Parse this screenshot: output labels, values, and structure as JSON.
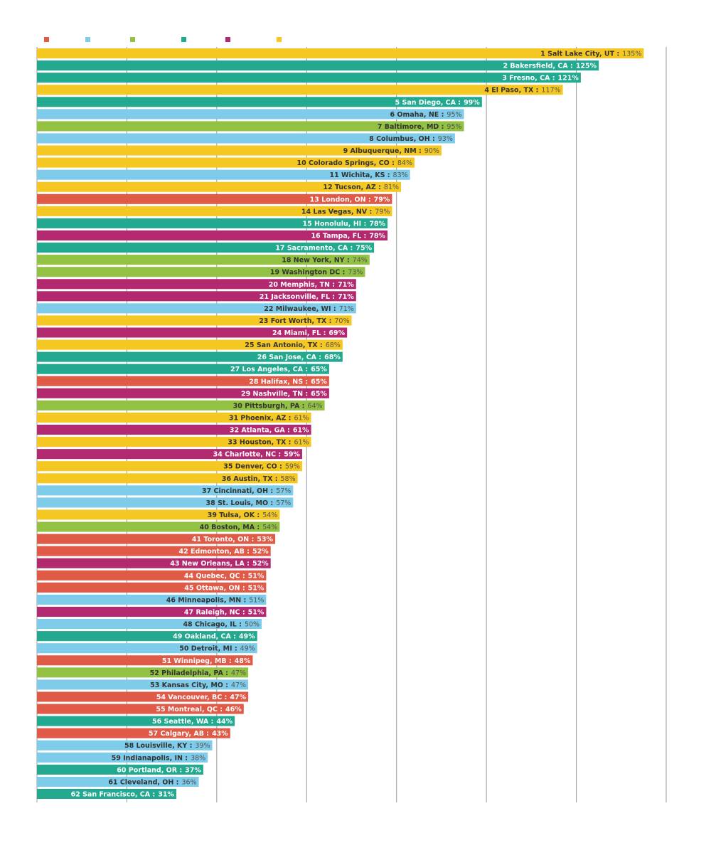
{
  "chart_data": {
    "type": "hbar",
    "legend_colors": [
      "#e05a48",
      "#7ecbea",
      "#92c143",
      "#22a98f",
      "#b3296f",
      "#f5c723"
    ],
    "categories": [
      "1 Salt Lake City, UT :",
      "2 Bakersfield, CA :",
      "3 Fresno, CA :",
      "4 El Paso, TX :",
      "5 San Diego, CA :",
      "6 Omaha, NE :",
      "7 Baltimore, MD :",
      "8 Columbus, OH :",
      "9 Albuquerque, NM :",
      "10 Colorado Springs, CO :",
      "11 Wichita, KS :",
      "12 Tucson, AZ :",
      "13 London, ON :",
      "14 Las Vegas, NV :",
      "15 Honolulu, HI :",
      "16 Tampa, FL :",
      "17 Sacramento, CA :",
      "18 New York, NY :",
      "19 Washington DC :",
      "20 Memphis, TN :",
      "21 Jacksonville, FL :",
      "22 Milwaukee, WI :",
      "23 Fort Worth, TX :",
      "24 Miami, FL :",
      "25 San Antonio, TX :",
      "26 San Jose, CA :",
      "27 Los Angeles, CA :",
      "28 Halifax, NS :",
      "29 Nashville, TN :",
      "30 Pittsburgh, PA :",
      "31 Phoenix, AZ :",
      "32 Atlanta, GA :",
      "33 Houston, TX :",
      "34 Charlotte, NC :",
      "35 Denver, CO :",
      "36 Austin, TX :",
      "37 Cincinnati, OH :",
      "38 St. Louis, MO :",
      "39 Tulsa, OK :",
      "40 Boston, MA :",
      "41 Toronto, ON :",
      "42 Edmonton, AB :",
      "43 New Orleans, LA :",
      "44 Quebec, QC :",
      "45 Ottawa, ON :",
      "46 Minneapolis, MN :",
      "47 Raleigh, NC :",
      "48 Chicago, IL :",
      "49 Oakland, CA :",
      "50 Detroit, MI :",
      "51 Winnipeg, MB :",
      "52 Philadelphia, PA :",
      "53 Kansas City, MO :",
      "54 Vancouver, BC :",
      "55 Montreal, QC :",
      "56 Seattle, WA :",
      "57 Calgary, AB :",
      "58 Louisville, KY :",
      "59 Indianapolis, IN :",
      "60 Portland, OR :",
      "61 Cleveland, OH :",
      "62 San Francisco, CA :"
    ],
    "values": [
      135,
      125,
      121,
      117,
      99,
      95,
      95,
      93,
      90,
      84,
      83,
      81,
      79,
      79,
      78,
      78,
      75,
      74,
      73,
      71,
      71,
      71,
      70,
      69,
      68,
      68,
      65,
      65,
      65,
      64,
      61,
      61,
      61,
      59,
      59,
      58,
      57,
      57,
      54,
      54,
      53,
      52,
      52,
      51,
      51,
      51,
      51,
      50,
      49,
      49,
      48,
      47,
      47,
      47,
      46,
      44,
      43,
      39,
      38,
      37,
      36,
      31
    ],
    "value_labels": [
      "135%",
      "125%",
      "121%",
      "117%",
      "99%",
      "95%",
      "95%",
      "93%",
      "90%",
      "84%",
      "83%",
      "81%",
      "79%",
      "79%",
      "78%",
      "78%",
      "75%",
      "74%",
      "73%",
      "71%",
      "71%",
      "71%",
      "70%",
      "69%",
      "68%",
      "68%",
      "65%",
      "65%",
      "65%",
      "64%",
      "61%",
      "61%",
      "61%",
      "59%",
      "59%",
      "58%",
      "57%",
      "57%",
      "54%",
      "54%",
      "53%",
      "52%",
      "52%",
      "51%",
      "51%",
      "51%",
      "51%",
      "50%",
      "49%",
      "49%",
      "48%",
      "47%",
      "47%",
      "47%",
      "46%",
      "44%",
      "43%",
      "39%",
      "38%",
      "37%",
      "36%",
      "31%"
    ],
    "colors": [
      "#f5c723",
      "#22a98f",
      "#22a98f",
      "#f5c723",
      "#22a98f",
      "#7ecbea",
      "#92c143",
      "#7ecbea",
      "#f5c723",
      "#f5c723",
      "#7ecbea",
      "#f5c723",
      "#e05a48",
      "#f5c723",
      "#22a98f",
      "#b3296f",
      "#22a98f",
      "#92c143",
      "#92c143",
      "#b3296f",
      "#b3296f",
      "#7ecbea",
      "#f5c723",
      "#b3296f",
      "#f5c723",
      "#22a98f",
      "#22a98f",
      "#e05a48",
      "#b3296f",
      "#92c143",
      "#f5c723",
      "#b3296f",
      "#f5c723",
      "#b3296f",
      "#f5c723",
      "#f5c723",
      "#7ecbea",
      "#7ecbea",
      "#f5c723",
      "#92c143",
      "#e05a48",
      "#e05a48",
      "#b3296f",
      "#e05a48",
      "#e05a48",
      "#7ecbea",
      "#b3296f",
      "#7ecbea",
      "#22a98f",
      "#7ecbea",
      "#e05a48",
      "#92c143",
      "#7ecbea",
      "#e05a48",
      "#e05a48",
      "#22a98f",
      "#e05a48",
      "#7ecbea",
      "#7ecbea",
      "#22a98f",
      "#7ecbea",
      "#22a98f"
    ],
    "xlim": [
      0,
      140
    ],
    "xticks": [
      0,
      20,
      40,
      60,
      80,
      100,
      120,
      140
    ],
    "grid": true
  }
}
